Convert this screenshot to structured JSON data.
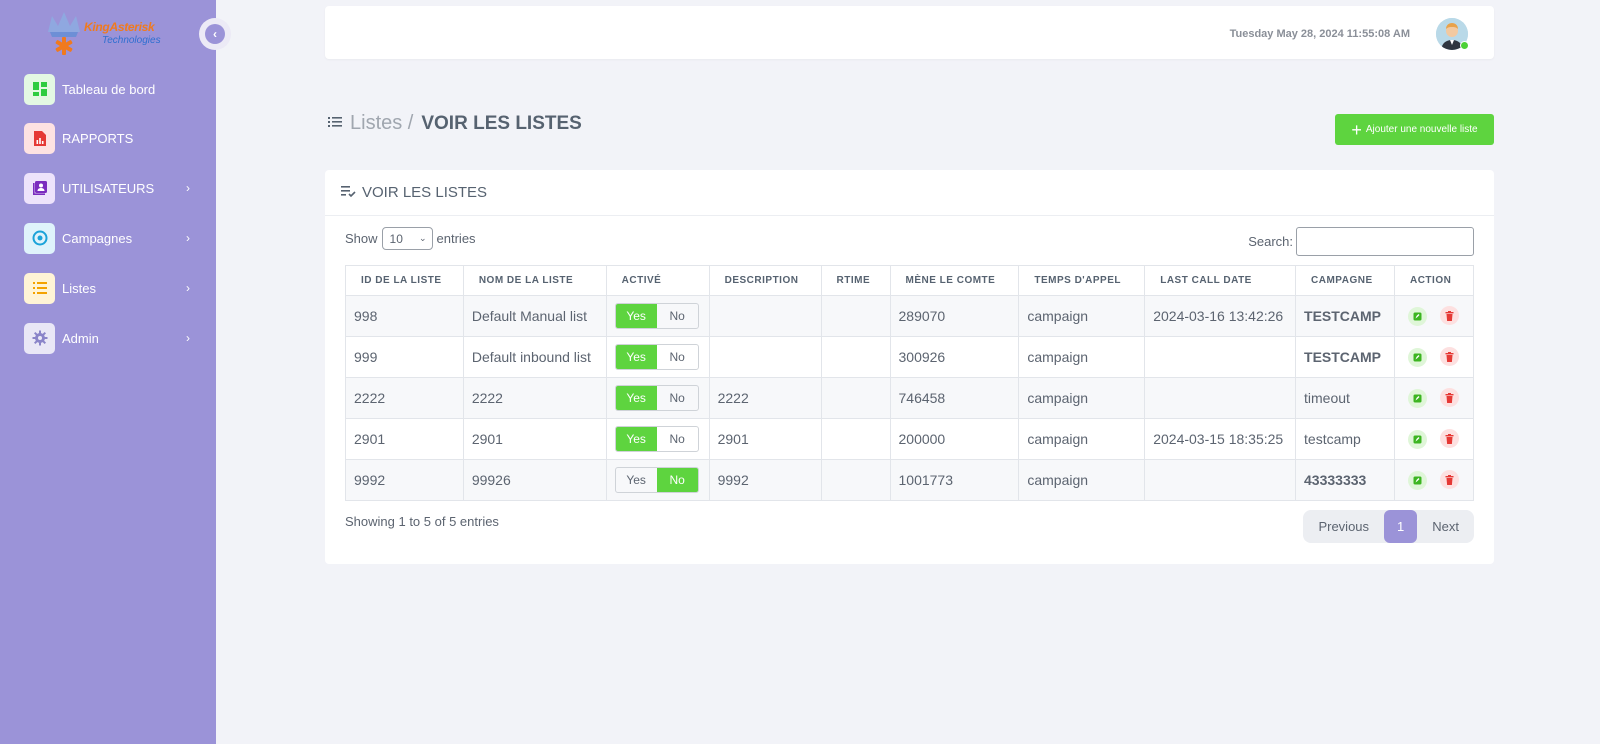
{
  "brand": {
    "name": "KingAsterisk",
    "sub": "Technologies"
  },
  "sidebar": {
    "items": [
      {
        "label": "Tableau de bord",
        "icon": "dashboard-icon",
        "color": "#2ecc40",
        "bg": "#e3f8e3"
      },
      {
        "label": "RAPPORTS",
        "icon": "report-icon",
        "color": "#e53935",
        "bg": "#fde2e2"
      },
      {
        "label": "UTILISATEURS",
        "icon": "users-icon",
        "color": "#7b2cbf",
        "bg": "#ede3fb"
      },
      {
        "label": "Campagnes",
        "icon": "target-icon",
        "color": "#1aa3d9",
        "bg": "#dff3fb"
      },
      {
        "label": "Listes",
        "icon": "list-icon",
        "color": "#f4a300",
        "bg": "#fff4d6"
      },
      {
        "label": "Admin",
        "icon": "gear-icon",
        "color": "#8a84c9",
        "bg": "#e9e7f6"
      }
    ]
  },
  "topbar": {
    "datetime": "Tuesday May 28, 2024 11:55:08 AM"
  },
  "page": {
    "breadcrumb": "Listes /",
    "title": "VOIR LES LISTES",
    "add_button": "Ajouter une nouvelle liste"
  },
  "card": {
    "title": "VOIR LES LISTES",
    "show_label": "Show",
    "entries_label": "entries",
    "page_size": "10",
    "search_label": "Search:"
  },
  "table": {
    "headers": [
      "ID DE LA LISTE",
      "NOM DE LA LISTE",
      "ACTIVÉ",
      "DESCRIPTION",
      "RTIME",
      "MÈNE LE COMTE",
      "TEMPS D'APPEL",
      "LAST CALL DATE",
      "CAMPAGNE",
      "ACTION"
    ],
    "toggle_yes": "Yes",
    "toggle_no": "No",
    "rows": [
      {
        "id": "998",
        "name": "Default Manual list",
        "active": true,
        "description": "",
        "rtime": "",
        "count": "289070",
        "call_time": "campaign",
        "last_call": "2024-03-16 13:42:26",
        "campaign": "TESTCAMP",
        "campaign_bold": true
      },
      {
        "id": "999",
        "name": "Default inbound list",
        "active": true,
        "description": "",
        "rtime": "",
        "count": "300926",
        "call_time": "campaign",
        "last_call": "",
        "campaign": "TESTCAMP",
        "campaign_bold": true
      },
      {
        "id": "2222",
        "name": "2222",
        "active": true,
        "description": "2222",
        "rtime": "",
        "count": "746458",
        "call_time": "campaign",
        "last_call": "",
        "campaign": "timeout",
        "campaign_bold": false
      },
      {
        "id": "2901",
        "name": "2901",
        "active": true,
        "description": "2901",
        "rtime": "",
        "count": "200000",
        "call_time": "campaign",
        "last_call": "2024-03-15 18:35:25",
        "campaign": "testcamp",
        "campaign_bold": false
      },
      {
        "id": "9992",
        "name": "99926",
        "active": false,
        "description": "9992",
        "rtime": "",
        "count": "1001773",
        "call_time": "campaign",
        "last_call": "",
        "campaign": "43333333",
        "campaign_bold": true
      }
    ]
  },
  "footer": {
    "showing": "Showing 1 to 5 of 5 entries",
    "prev": "Previous",
    "page": "1",
    "next": "Next"
  }
}
